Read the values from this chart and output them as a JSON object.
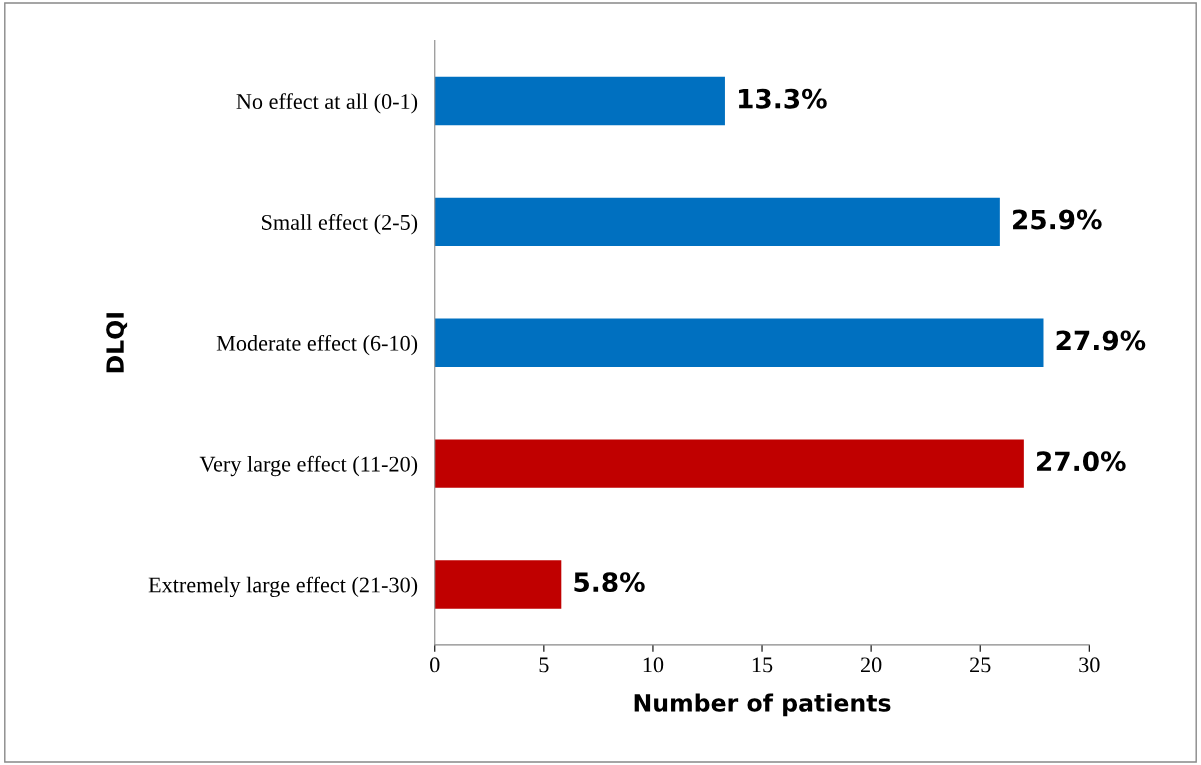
{
  "chart_data": {
    "type": "bar",
    "orientation": "horizontal",
    "xlabel": "Number of patients",
    "ylabel": "DLQI",
    "categories": [
      "No effect at all (0-1)",
      "Small effect (2-5)",
      "Moderate effect (6-10)",
      "Very large effect (11-20)",
      "Extremely large effect (21-30)"
    ],
    "values": [
      13.3,
      25.9,
      27.9,
      27.0,
      5.8
    ],
    "colors": [
      "#0070c0",
      "#0070c0",
      "#0070c0",
      "#c00000",
      "#c00000"
    ],
    "value_labels": [
      "13.3%",
      "25.9%",
      "27.9%",
      "27.0%",
      "5.8%"
    ],
    "xlim": [
      0,
      30
    ],
    "xticks": [
      0,
      5,
      10,
      15,
      20,
      25,
      30
    ]
  }
}
